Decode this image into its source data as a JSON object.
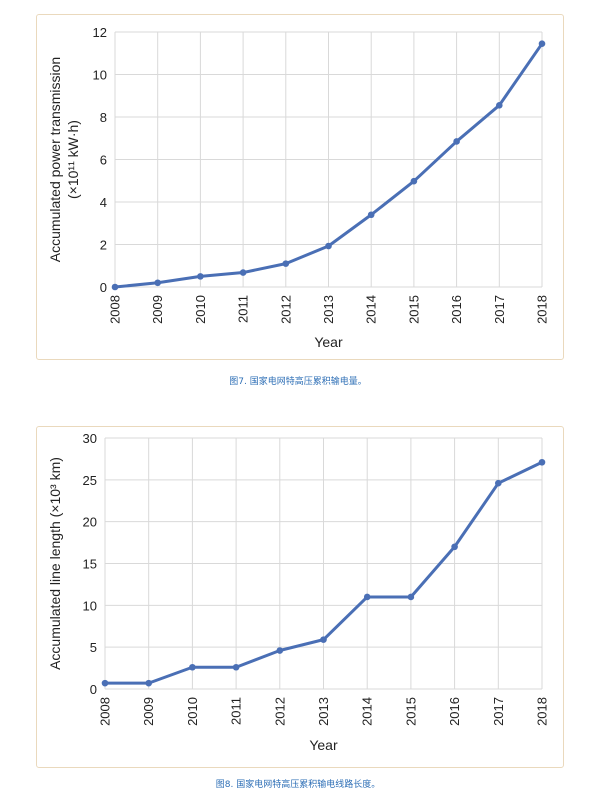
{
  "colors": {
    "series": "#4a6fb5",
    "frame": "#ead9bd",
    "caption": "#2e6fb6"
  },
  "chart_data": [
    {
      "type": "line",
      "x": [
        "2008",
        "2009",
        "2010",
        "2011",
        "2012",
        "2013",
        "2014",
        "2015",
        "2016",
        "2017",
        "2018"
      ],
      "values": [
        0.0,
        0.2,
        0.5,
        0.68,
        1.1,
        1.93,
        3.4,
        4.98,
        6.85,
        8.55,
        11.45
      ],
      "xlabel": "Year",
      "ylabel_line1": "Accumulated power transmission",
      "ylabel_line2": "(×10¹¹ kW·h)",
      "ylim": [
        0,
        12
      ],
      "yticks": [
        "0",
        "2",
        "4",
        "6",
        "8",
        "10",
        "12"
      ],
      "ytick_values": [
        0,
        2,
        4,
        6,
        8,
        10,
        12
      ],
      "grid": true,
      "caption": "图7. 国家电网特高压累积输电量。"
    },
    {
      "type": "line",
      "x": [
        "2008",
        "2009",
        "2010",
        "2011",
        "2012",
        "2013",
        "2014",
        "2015",
        "2016",
        "2017",
        "2018"
      ],
      "values": [
        0.7,
        0.7,
        2.6,
        2.6,
        4.6,
        5.9,
        11.0,
        11.0,
        17.0,
        24.6,
        27.1
      ],
      "xlabel": "Year",
      "ylabel_line1": "Accumulated line length (×10³ km)",
      "ylim": [
        0,
        30
      ],
      "yticks": [
        "0",
        "5",
        "10",
        "15",
        "20",
        "25",
        "30"
      ],
      "ytick_values": [
        0,
        5,
        10,
        15,
        20,
        25,
        30
      ],
      "grid": true,
      "caption": "图8. 国家电网特高压累积输电线路长度。"
    }
  ]
}
